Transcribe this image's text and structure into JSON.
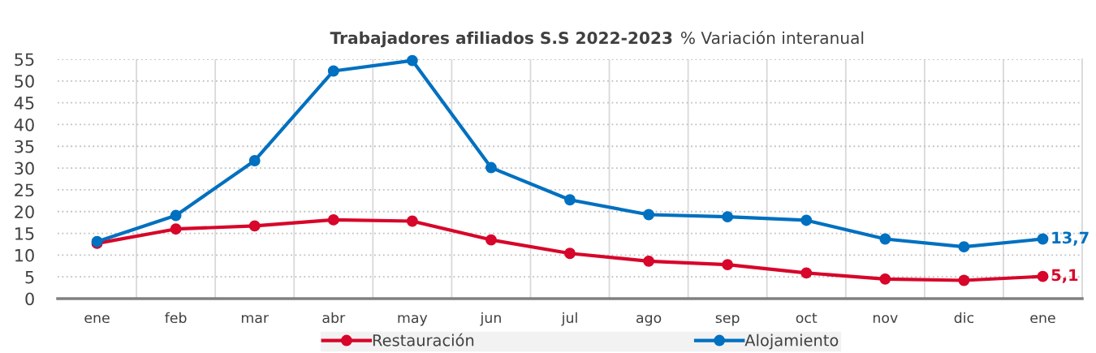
{
  "chart_data": {
    "type": "line",
    "title": "Trabajadores afiliados S.S 2022-2023",
    "subtitle": "% Variación interanual",
    "categories": [
      "ene",
      "feb",
      "mar",
      "abr",
      "may",
      "jun",
      "jul",
      "ago",
      "sep",
      "oct",
      "nov",
      "dic",
      "ene"
    ],
    "series": [
      {
        "name": "Restauración",
        "color": "#d7062a",
        "values": [
          12.7,
          16.0,
          16.7,
          18.1,
          17.8,
          13.5,
          10.4,
          8.6,
          7.8,
          5.9,
          4.5,
          4.2,
          5.1
        ],
        "value_labels": [
          null,
          null,
          null,
          null,
          null,
          null,
          null,
          null,
          null,
          null,
          null,
          null,
          "5,1"
        ]
      },
      {
        "name": "Alojamiento",
        "color": "#0070c0",
        "values": [
          13.1,
          19.1,
          31.7,
          52.3,
          54.7,
          30.1,
          22.7,
          19.3,
          18.8,
          18.0,
          13.7,
          11.9,
          13.7
        ],
        "value_labels": [
          null,
          null,
          null,
          null,
          null,
          null,
          null,
          null,
          null,
          null,
          null,
          null,
          "13,7"
        ]
      }
    ],
    "ylim": [
      0,
      55
    ],
    "yticks": [
      0,
      5,
      10,
      15,
      20,
      25,
      30,
      35,
      40,
      45,
      50,
      55
    ],
    "grid": true,
    "legend": "bottom",
    "marker": "circle",
    "line_style": "solid"
  }
}
